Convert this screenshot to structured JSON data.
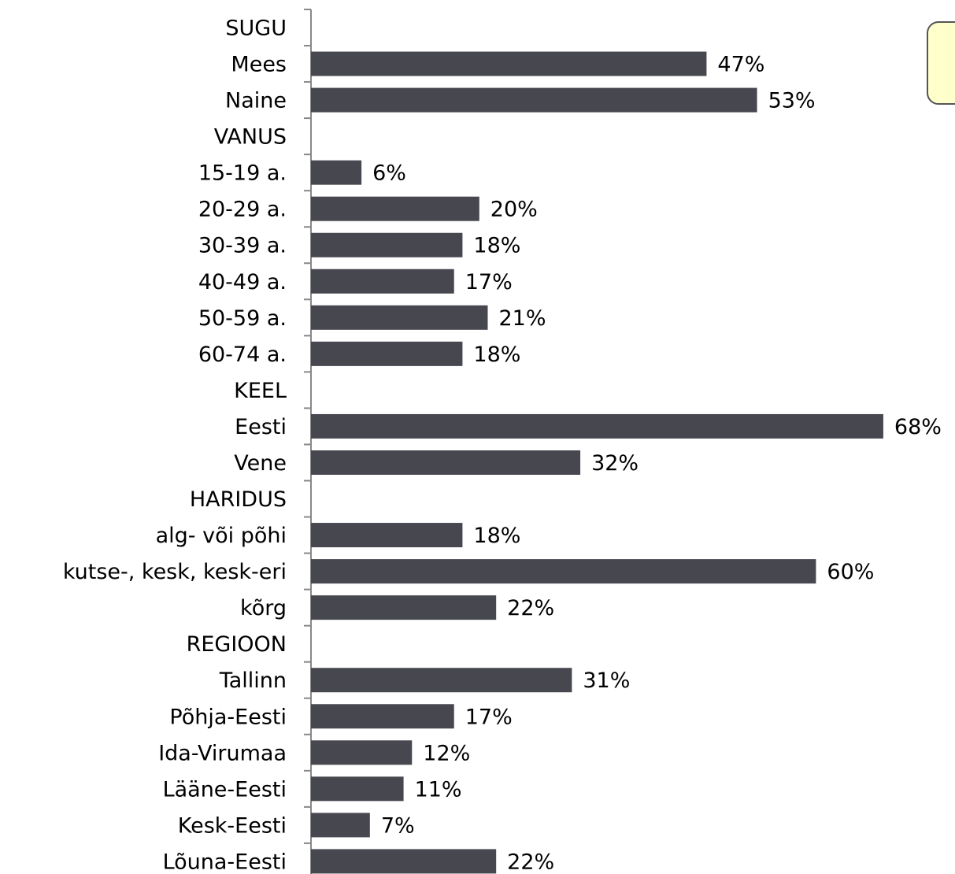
{
  "chart_data": {
    "type": "bar",
    "orientation": "horizontal",
    "color": "#474750",
    "categories": [
      "SUGU",
      "Mees",
      "Naine",
      "VANUS",
      "15-19 a.",
      "20-29 a.",
      "30-39 a.",
      "40-49 a.",
      "50-59 a.",
      "60-74 a.",
      "KEEL",
      "Eesti",
      "Vene",
      "HARIDUS",
      "alg- või põhi",
      "kutse-, kesk, kesk-eri",
      "kõrg",
      "REGIOON",
      "Tallinn",
      "Põhja-Eesti",
      "Ida-Virumaa",
      "Lääne-Eesti",
      "Kesk-Eesti",
      "Lõuna-Eesti"
    ],
    "values": [
      null,
      47,
      53,
      null,
      6,
      20,
      18,
      17,
      21,
      18,
      null,
      68,
      32,
      null,
      18,
      60,
      22,
      null,
      31,
      17,
      12,
      11,
      7,
      22
    ],
    "value_labels": [
      null,
      "47%",
      "53%",
      null,
      "6%",
      "20%",
      "18%",
      "17%",
      "21%",
      "18%",
      null,
      "68%",
      "32%",
      null,
      "18%",
      "60%",
      "22%",
      null,
      "31%",
      "17%",
      "12%",
      "11%",
      "7%",
      "22%"
    ]
  }
}
